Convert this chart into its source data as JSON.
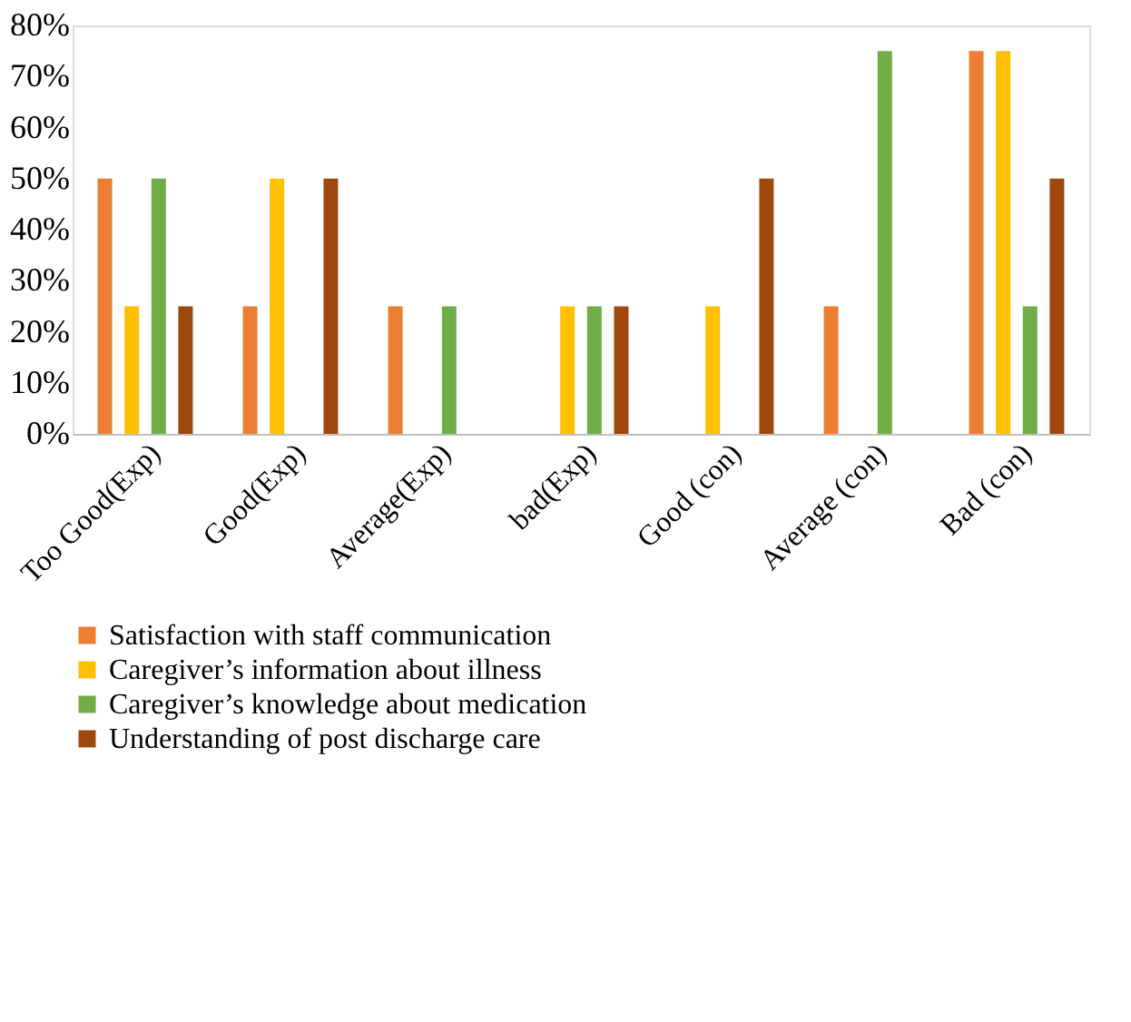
{
  "chart_data": {
    "type": "bar",
    "categories": [
      "Too Good(Exp)",
      "Good(Exp)",
      "Average(Exp)",
      "bad(Exp)",
      "Good (con)",
      "Average (con)",
      "Bad (con)",
      null
    ],
    "series": [
      {
        "name": "Satisfaction with staff communication",
        "color": "#ed7d31",
        "values": [
          50,
          25,
          25,
          0,
          0,
          25,
          75,
          null
        ]
      },
      {
        "name": "Caregiver’s information about illness",
        "color": "#ffc000",
        "values": [
          25,
          50,
          0,
          25,
          25,
          0,
          75,
          null
        ]
      },
      {
        "name": "Caregiver’s knowledge about medication",
        "color": "#70ad47",
        "values": [
          50,
          0,
          25,
          25,
          0,
          75,
          25,
          null
        ]
      },
      {
        "name": "Understanding of post discharge care",
        "color": "#9e480e",
        "values": [
          25,
          50,
          0,
          25,
          50,
          0,
          50,
          null
        ]
      }
    ],
    "ylim": [
      0,
      80
    ],
    "yticks": [
      {
        "value": 0,
        "label": "0%"
      },
      {
        "value": 10,
        "label": "10%"
      },
      {
        "value": 20,
        "label": "20%"
      },
      {
        "value": 30,
        "label": "30%"
      },
      {
        "value": 40,
        "label": "40%"
      },
      {
        "value": 50,
        "label": "50%"
      },
      {
        "value": 60,
        "label": "60%"
      },
      {
        "value": 70,
        "label": "70%"
      },
      {
        "value": 80,
        "label": "80%"
      }
    ],
    "grid": false,
    "legend": "bottom"
  }
}
